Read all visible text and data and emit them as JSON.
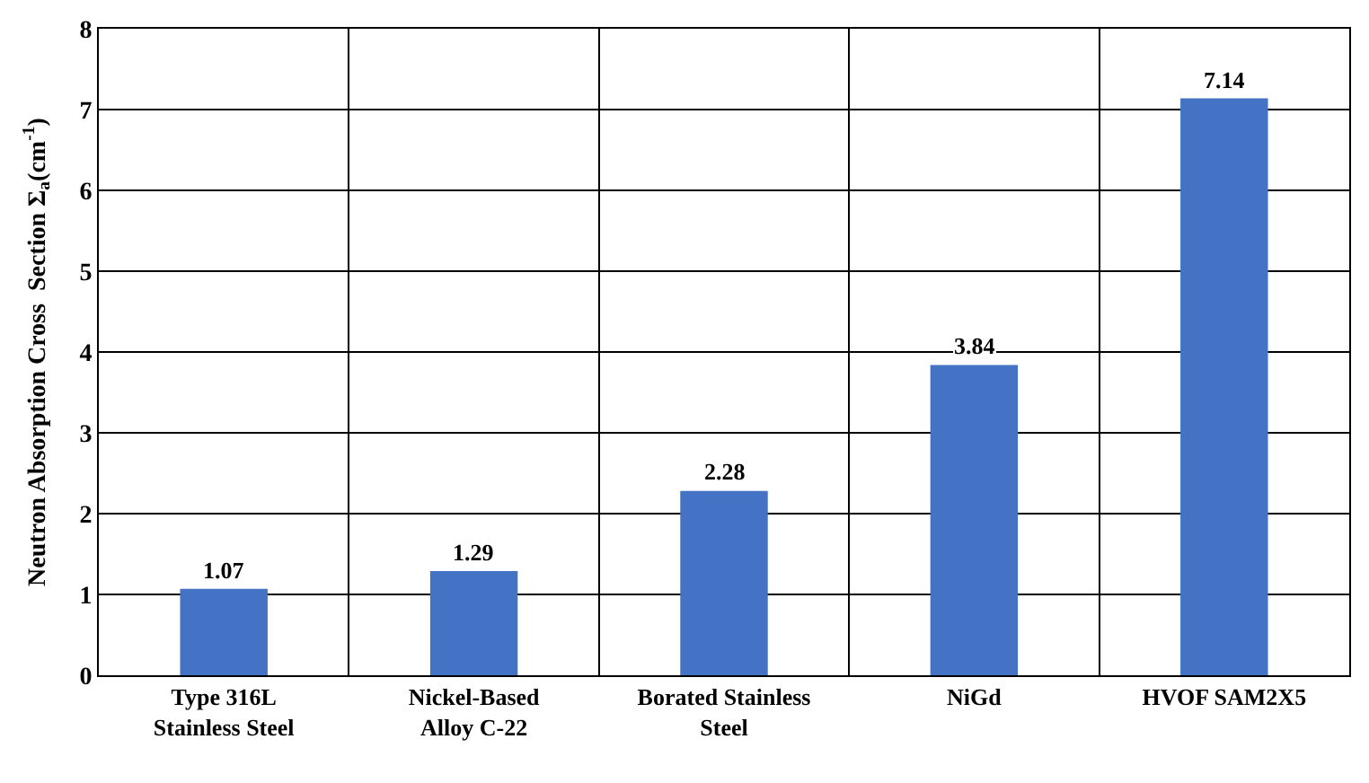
{
  "chart_data": {
    "type": "bar",
    "ylabel": "Neutron Absorption Cross  Section Σ$_{a}$(cm$^{-1}$)",
    "categories": [
      "Type 316L\nStainless Steel",
      "Nickel-Based\nAlloy C-22",
      "Borated Stainless\nSteel",
      "NiGd",
      "HVOF SAM2X5"
    ],
    "values": [
      1.07,
      1.29,
      2.28,
      3.84,
      7.14
    ],
    "color": "#4472c4",
    "ylim": [
      0,
      8
    ],
    "yticks": [
      0,
      1,
      2,
      3,
      4,
      5,
      6,
      7,
      8
    ],
    "grid": true,
    "data_labels": true
  }
}
